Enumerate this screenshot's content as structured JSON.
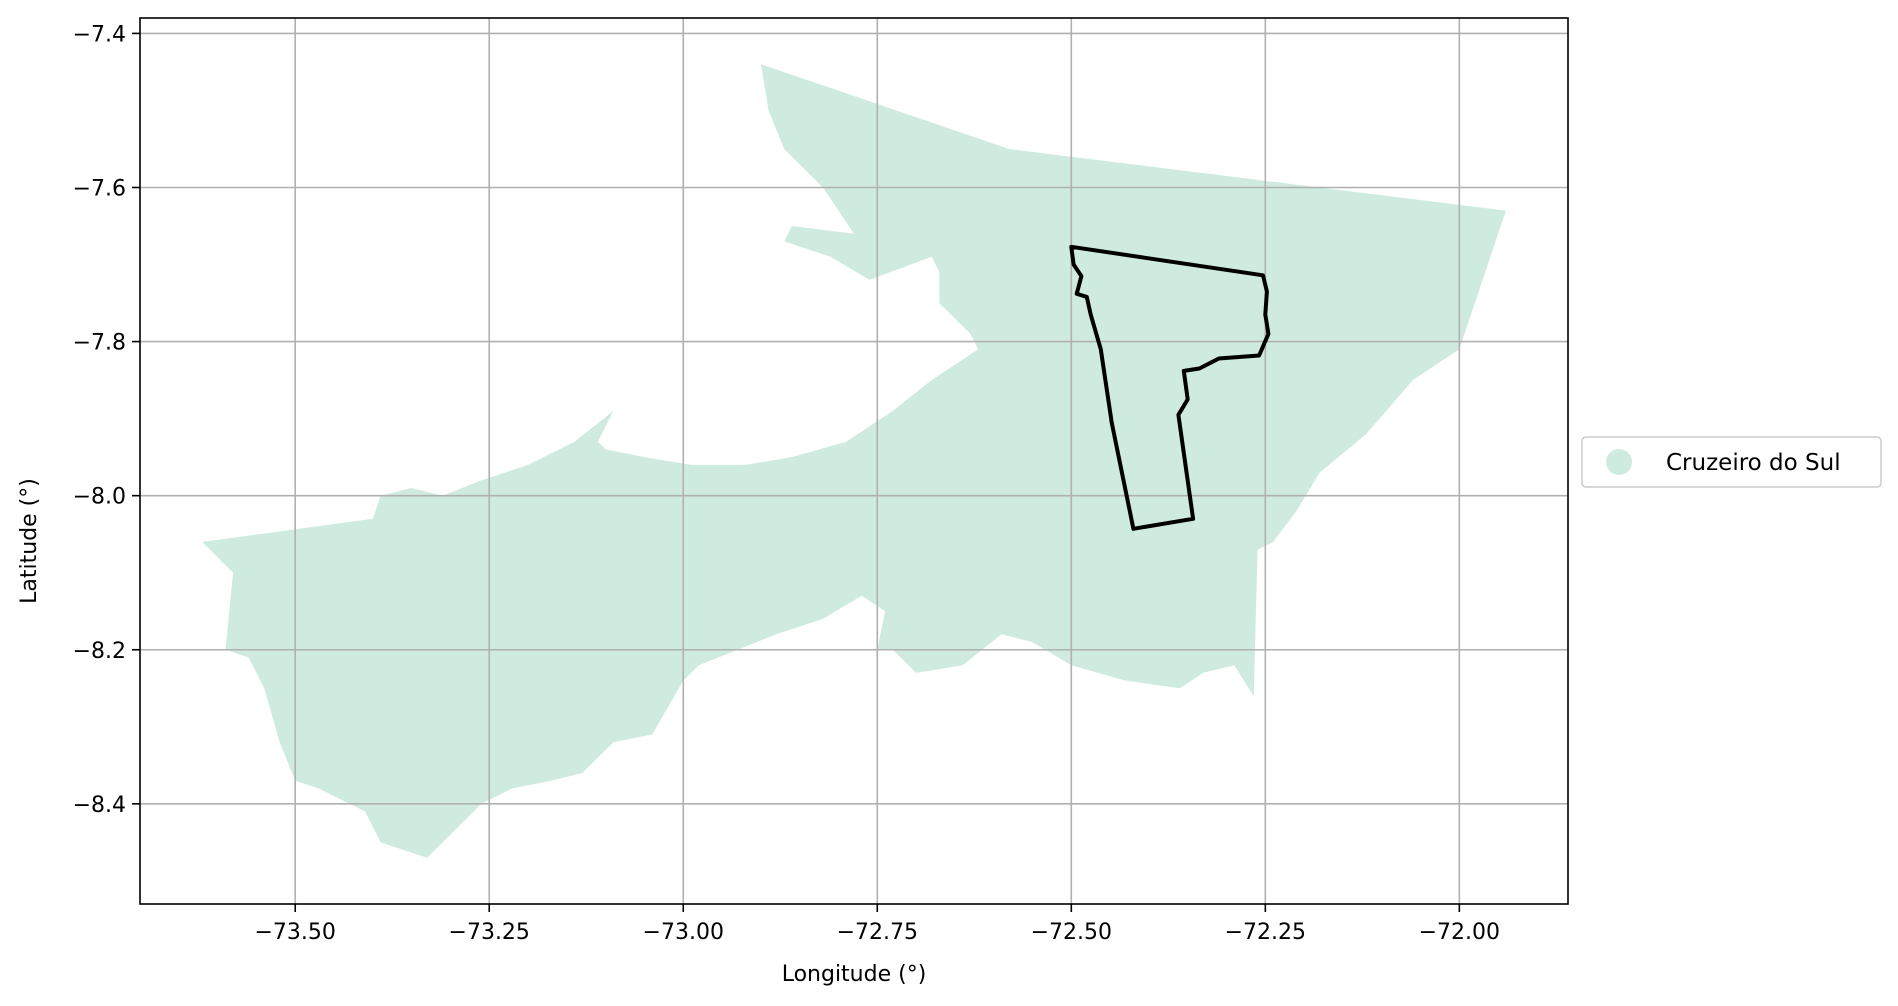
{
  "chart_data": {
    "type": "map",
    "xlabel": "Longitude (°)",
    "ylabel": "Latitude (°)",
    "xlim": [
      -73.7,
      -71.86
    ],
    "ylim": [
      -8.53,
      -7.38
    ],
    "xticks": [
      -73.5,
      -73.25,
      -73.0,
      -72.75,
      -72.5,
      -72.25,
      -72.0
    ],
    "xtick_labels": [
      "−73.50",
      "−73.25",
      "−73.00",
      "−72.75",
      "−72.50",
      "−72.25",
      "−72.00"
    ],
    "yticks": [
      -7.4,
      -7.6,
      -7.8,
      -8.0,
      -8.2,
      -8.4
    ],
    "ytick_labels": [
      "−7.4",
      "−7.6",
      "−7.8",
      "−8.0",
      "−8.2",
      "−8.4"
    ],
    "grid": true,
    "legend": {
      "placement": "right-center-outside",
      "entries": [
        {
          "label": "Cruzeiro do Sul",
          "color": "#cfebdf",
          "marker": "circle"
        }
      ]
    },
    "region_fill": {
      "color": "#cfebdf",
      "polygon": [
        [
          -72.9,
          -7.44
        ],
        [
          -72.58,
          -7.55
        ],
        [
          -71.94,
          -7.63
        ],
        [
          -72.0,
          -7.81
        ],
        [
          -72.06,
          -7.85
        ],
        [
          -72.12,
          -7.92
        ],
        [
          -72.18,
          -7.97
        ],
        [
          -72.21,
          -8.02
        ],
        [
          -72.24,
          -8.06
        ],
        [
          -72.26,
          -8.07
        ],
        [
          -72.265,
          -8.26
        ],
        [
          -72.29,
          -8.22
        ],
        [
          -72.33,
          -8.23
        ],
        [
          -72.36,
          -8.25
        ],
        [
          -72.43,
          -8.24
        ],
        [
          -72.5,
          -8.22
        ],
        [
          -72.55,
          -8.19
        ],
        [
          -72.59,
          -8.18
        ],
        [
          -72.64,
          -8.22
        ],
        [
          -72.7,
          -8.23
        ],
        [
          -72.73,
          -8.2
        ],
        [
          -72.75,
          -8.2
        ],
        [
          -72.74,
          -8.15
        ],
        [
          -72.77,
          -8.13
        ],
        [
          -72.82,
          -8.16
        ],
        [
          -72.88,
          -8.18
        ],
        [
          -72.93,
          -8.2
        ],
        [
          -72.98,
          -8.22
        ],
        [
          -73.0,
          -8.24
        ],
        [
          -73.04,
          -8.31
        ],
        [
          -73.09,
          -8.32
        ],
        [
          -73.13,
          -8.36
        ],
        [
          -73.17,
          -8.37
        ],
        [
          -73.22,
          -8.38
        ],
        [
          -73.26,
          -8.4
        ],
        [
          -73.33,
          -8.47
        ],
        [
          -73.36,
          -8.46
        ],
        [
          -73.39,
          -8.45
        ],
        [
          -73.41,
          -8.41
        ],
        [
          -73.47,
          -8.38
        ],
        [
          -73.5,
          -8.37
        ],
        [
          -73.52,
          -8.32
        ],
        [
          -73.54,
          -8.25
        ],
        [
          -73.56,
          -8.21
        ],
        [
          -73.59,
          -8.2
        ],
        [
          -73.58,
          -8.1
        ],
        [
          -73.62,
          -8.06
        ],
        [
          -73.4,
          -8.03
        ],
        [
          -73.39,
          -8.0
        ],
        [
          -73.35,
          -7.99
        ],
        [
          -73.31,
          -8.0
        ],
        [
          -73.26,
          -7.98
        ],
        [
          -73.2,
          -7.96
        ],
        [
          -73.14,
          -7.93
        ],
        [
          -73.09,
          -7.89
        ],
        [
          -73.11,
          -7.93
        ],
        [
          -73.1,
          -7.94
        ],
        [
          -73.05,
          -7.95
        ],
        [
          -72.99,
          -7.96
        ],
        [
          -72.92,
          -7.96
        ],
        [
          -72.86,
          -7.95
        ],
        [
          -72.79,
          -7.93
        ],
        [
          -72.73,
          -7.89
        ],
        [
          -72.68,
          -7.85
        ],
        [
          -72.62,
          -7.81
        ],
        [
          -72.63,
          -7.79
        ],
        [
          -72.67,
          -7.75
        ],
        [
          -72.67,
          -7.71
        ],
        [
          -72.68,
          -7.69
        ],
        [
          -72.76,
          -7.72
        ],
        [
          -72.81,
          -7.69
        ],
        [
          -72.87,
          -7.67
        ],
        [
          -72.86,
          -7.65
        ],
        [
          -72.78,
          -7.66
        ],
        [
          -72.82,
          -7.6
        ],
        [
          -72.87,
          -7.55
        ],
        [
          -72.89,
          -7.5
        ]
      ]
    },
    "outline": {
      "color": "#000000",
      "polyline": [
        [
          -72.5,
          -7.677
        ],
        [
          -72.253,
          -7.714
        ],
        [
          -72.248,
          -7.735
        ],
        [
          -72.25,
          -7.765
        ],
        [
          -72.246,
          -7.79
        ],
        [
          -72.258,
          -7.818
        ],
        [
          -72.31,
          -7.822
        ],
        [
          -72.335,
          -7.835
        ],
        [
          -72.355,
          -7.838
        ],
        [
          -72.35,
          -7.875
        ],
        [
          -72.362,
          -7.895
        ],
        [
          -72.343,
          -8.03
        ],
        [
          -72.42,
          -8.043
        ],
        [
          -72.448,
          -7.905
        ],
        [
          -72.462,
          -7.81
        ],
        [
          -72.475,
          -7.765
        ],
        [
          -72.48,
          -7.742
        ],
        [
          -72.493,
          -7.738
        ],
        [
          -72.487,
          -7.715
        ],
        [
          -72.497,
          -7.7
        ]
      ]
    }
  }
}
